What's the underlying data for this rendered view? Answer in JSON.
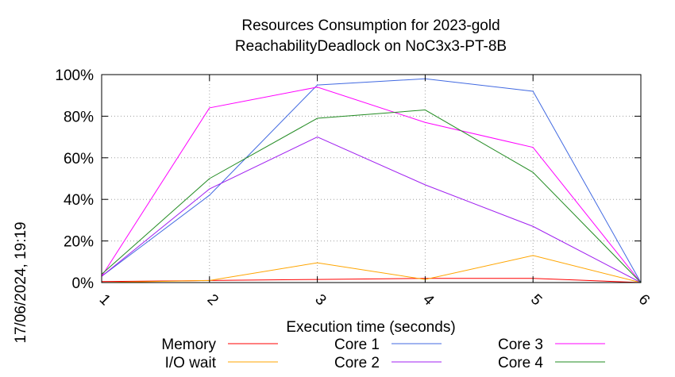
{
  "chart_data": {
    "type": "line",
    "title_line1": "Resources Consumption for 2023-gold",
    "title_line2": "ReachabilityDeadlock on NoC3x3-PT-8B",
    "xlabel": "Execution time (seconds)",
    "ylabel": "",
    "side_label": "17/06/2024, 19:19",
    "x": [
      1,
      2,
      3,
      4,
      5,
      6
    ],
    "x_ticks": [
      "1",
      "2",
      "3",
      "4",
      "5",
      "6"
    ],
    "xlim": [
      1,
      6
    ],
    "ylim": [
      0,
      100
    ],
    "y_ticks": [
      "0%",
      "20%",
      "40%",
      "60%",
      "80%",
      "100%"
    ],
    "grid": true,
    "legend_position": "bottom",
    "series": [
      {
        "name": "Memory",
        "color": "#ff0000",
        "values": [
          0.5,
          1,
          1.5,
          2,
          2,
          0
        ]
      },
      {
        "name": "I/O wait",
        "color": "#ffa500",
        "values": [
          0,
          1,
          9.5,
          1.5,
          13,
          0
        ]
      },
      {
        "name": "Core 1",
        "color": "#4169e1",
        "values": [
          3,
          42,
          95,
          98,
          92,
          0
        ]
      },
      {
        "name": "Core 2",
        "color": "#a020f0",
        "values": [
          3,
          45,
          70,
          47,
          27,
          0
        ]
      },
      {
        "name": "Core 3",
        "color": "#ff00ff",
        "values": [
          3,
          84,
          94,
          77,
          65,
          0
        ]
      },
      {
        "name": "Core 4",
        "color": "#228b22",
        "values": [
          4,
          50,
          79,
          83,
          53,
          0
        ]
      }
    ]
  }
}
